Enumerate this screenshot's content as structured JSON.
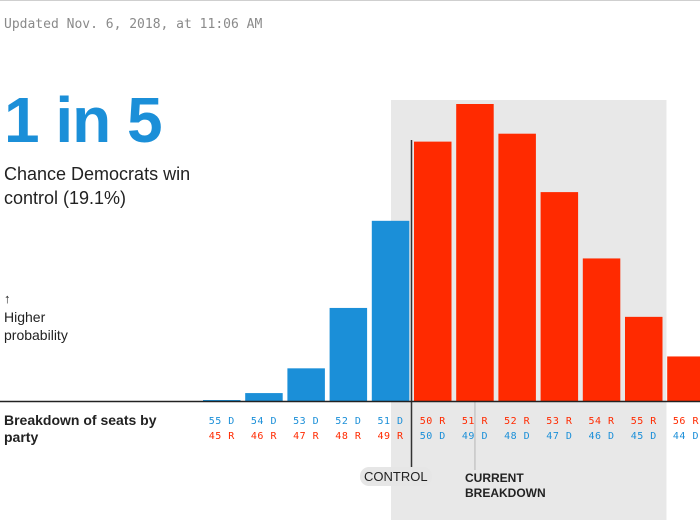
{
  "updated": "Updated Nov. 6, 2018, at 11:06 AM",
  "headline": "1 in 5",
  "subhead": "Chance Democrats win control (19.1%)",
  "y_label": {
    "arrow": "↑",
    "text_line1": "Higher",
    "text_line2": "probability"
  },
  "x_label": "Breakdown of seats by party",
  "annotations": {
    "control": "CONTROL",
    "current_line1": "CURRENT",
    "current_line2": "BREAKDOWN"
  },
  "colors": {
    "dem": "#1b8fd8",
    "rep": "#ff2a00",
    "shade": "#e8e8e8",
    "headline": "#1b8fd8"
  },
  "chart_data": {
    "type": "bar",
    "categories": [
      "55 D / 45 R",
      "54 D / 46 R",
      "53 D / 47 R",
      "52 D / 48 R",
      "51 D / 49 R",
      "50 R / 50 D",
      "51 R / 49 D",
      "52 R / 48 D",
      "53 R / 47 D",
      "54 R / 46 D",
      "55 R / 45 D",
      "56 R / 44 D"
    ],
    "tick_labels": [
      {
        "top": "55 D",
        "bottom": "45 R",
        "party": "D"
      },
      {
        "top": "54 D",
        "bottom": "46 R",
        "party": "D"
      },
      {
        "top": "53 D",
        "bottom": "47 R",
        "party": "D"
      },
      {
        "top": "52 D",
        "bottom": "48 R",
        "party": "D"
      },
      {
        "top": "51 D",
        "bottom": "49 R",
        "party": "D"
      },
      {
        "top": "50 R",
        "bottom": "50 D",
        "party": "R"
      },
      {
        "top": "51 R",
        "bottom": "49 D",
        "party": "R"
      },
      {
        "top": "52 R",
        "bottom": "48 D",
        "party": "R"
      },
      {
        "top": "53 R",
        "bottom": "47 D",
        "party": "R"
      },
      {
        "top": "54 R",
        "bottom": "46 D",
        "party": "R"
      },
      {
        "top": "55 R",
        "bottom": "45 D",
        "party": "R"
      },
      {
        "top": "56 R",
        "bottom": "44 D",
        "party": "R"
      }
    ],
    "values": [
      0.1,
      0.8,
      3.3,
      9.4,
      18.2,
      26.2,
      30.0,
      27.0,
      21.1,
      14.4,
      8.5,
      4.5
    ],
    "unit": "% probability (estimated)",
    "ylim": [
      0,
      30
    ],
    "grid": false,
    "legend": "none",
    "shaded_region": [
      "50 R / 50 D",
      "55 R / 45 D"
    ],
    "current_breakdown": "51 R / 49 D"
  }
}
